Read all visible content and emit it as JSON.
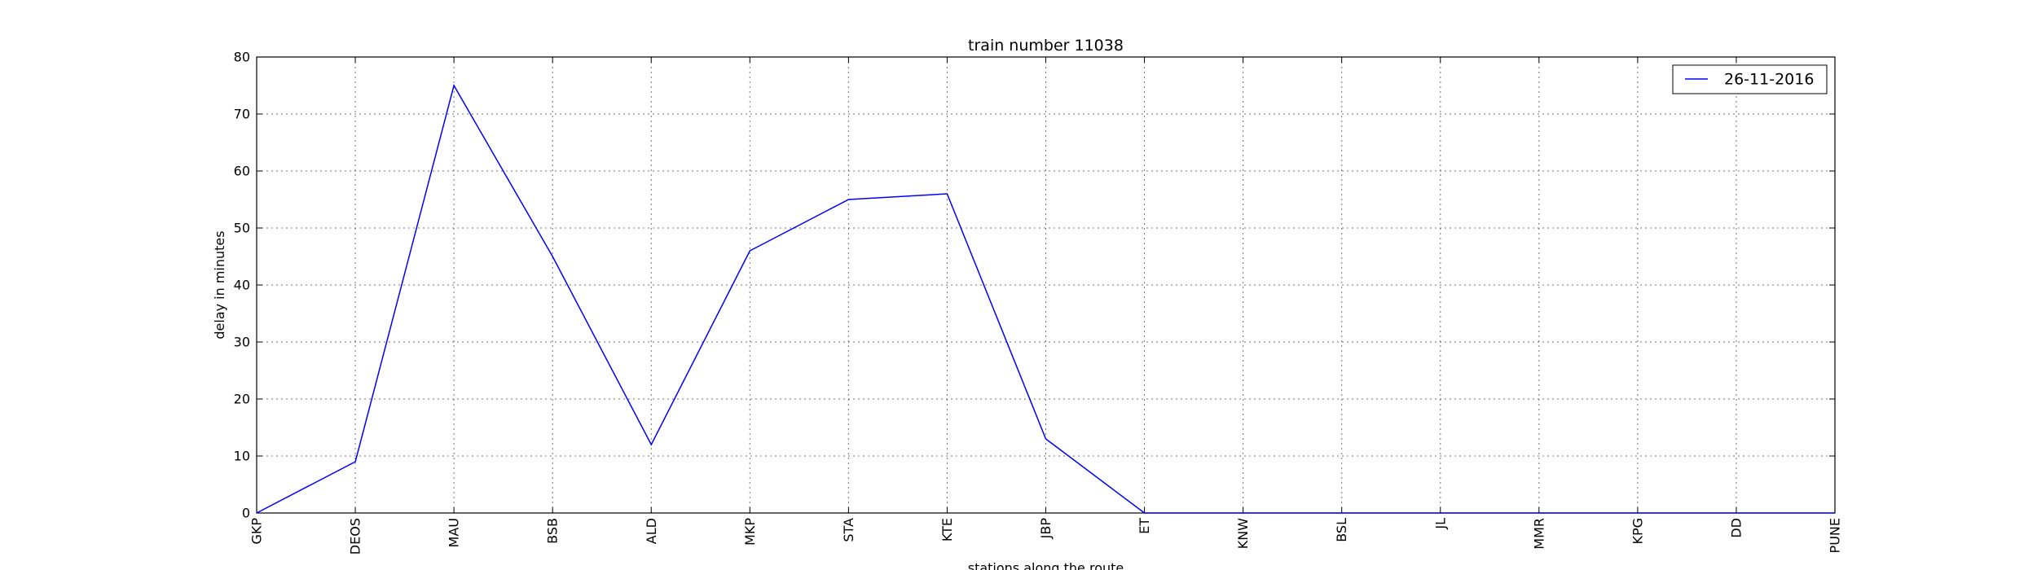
{
  "chart_data": {
    "type": "line",
    "title": "train number 11038",
    "xlabel": "stations along the route",
    "ylabel": "delay in minutes",
    "categories": [
      "GKP",
      "DEOS",
      "MAU",
      "BSB",
      "ALD",
      "MKP",
      "STA",
      "KTE",
      "JBP",
      "ET",
      "KNW",
      "BSL",
      "JL",
      "MMR",
      "KPG",
      "DD",
      "PUNE"
    ],
    "series": [
      {
        "name": "26-11-2016",
        "color": "#0000ff",
        "values": [
          0,
          9,
          75,
          45,
          12,
          46,
          55,
          56,
          13,
          0,
          0,
          0,
          0,
          0,
          0,
          0,
          0
        ]
      }
    ],
    "ylim": [
      0,
      80
    ],
    "yticks": [
      0,
      10,
      20,
      30,
      40,
      50,
      60,
      70,
      80
    ],
    "grid": true,
    "legend_position": "top-right"
  }
}
